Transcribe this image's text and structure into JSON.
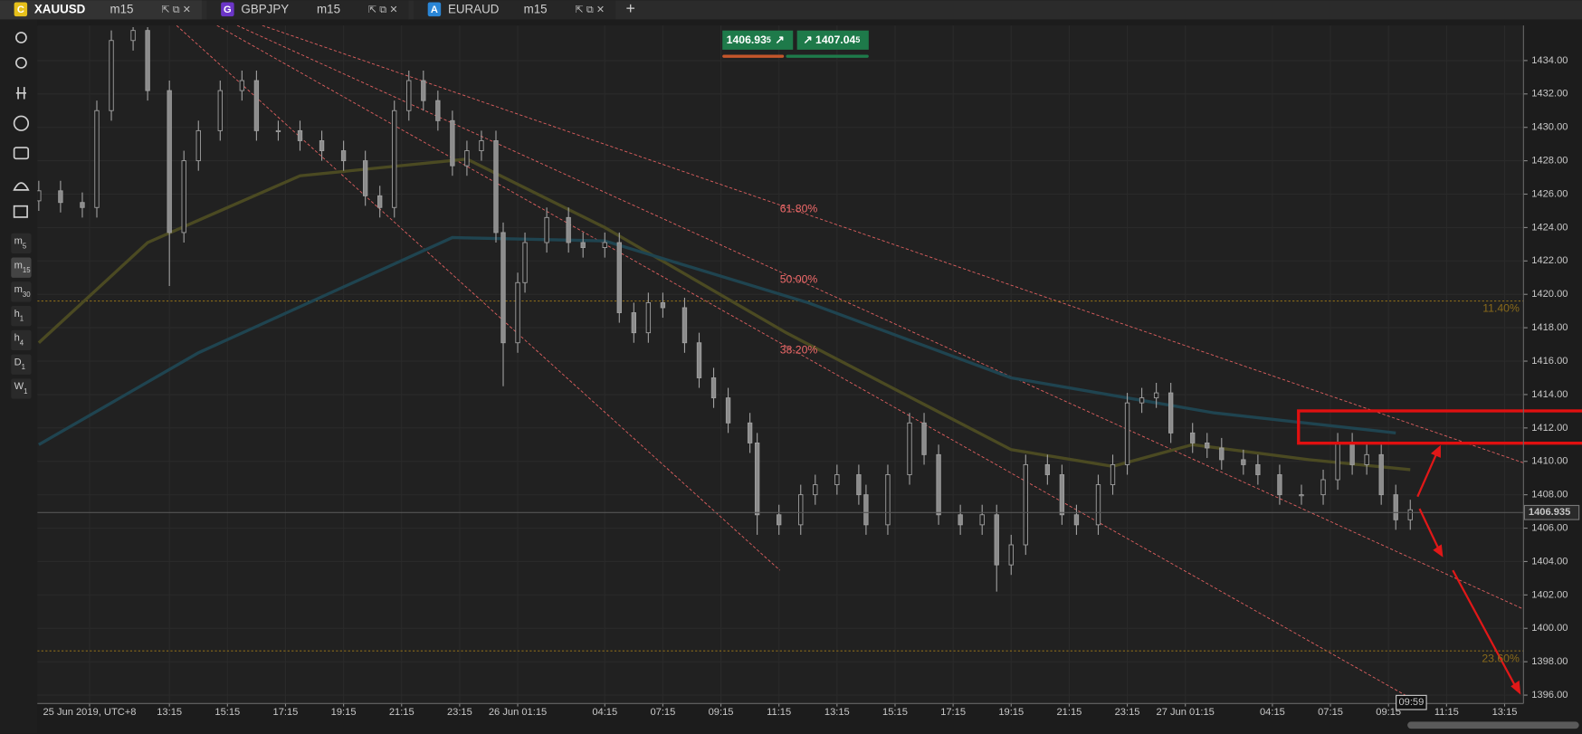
{
  "tabs": [
    {
      "icon": "C",
      "symbol": "XAUUSD",
      "timeframe": "m15"
    },
    {
      "icon": "G",
      "symbol": "GBPJPY",
      "timeframe": "m15"
    },
    {
      "icon": "A",
      "symbol": "EURAUD",
      "timeframe": "m15"
    }
  ],
  "toolbar": {
    "timeframes": [
      {
        "main": "m",
        "sub": "5"
      },
      {
        "main": "m",
        "sub": "15"
      },
      {
        "main": "m",
        "sub": "30"
      },
      {
        "main": "h",
        "sub": "1"
      },
      {
        "main": "h",
        "sub": "4"
      },
      {
        "main": "D",
        "sub": "1"
      },
      {
        "main": "W",
        "sub": "1"
      }
    ]
  },
  "quote": {
    "bid": "1406.93",
    "bid_pip": "5",
    "ask": "1407.04",
    "ask_pip": "5"
  },
  "chart_data": {
    "type": "candlestick",
    "x": [
      -18,
      -15,
      -12,
      -10,
      -8,
      -5,
      -3,
      0,
      2,
      4,
      7,
      10,
      12,
      15,
      18,
      21,
      24,
      27,
      29,
      31,
      33,
      35,
      37,
      39,
      41,
      43,
      45,
      46,
      48,
      49,
      52,
      55,
      57,
      60,
      62,
      64,
      66,
      68,
      71,
      73,
      75,
      77,
      80,
      81,
      84,
      87,
      89,
      92,
      95,
      96,
      99,
      102,
      104,
      106,
      109,
      112,
      114,
      116,
      118,
      121,
      123,
      125,
      128,
      130,
      132,
      134,
      136,
      138,
      141,
      143,
      145,
      148,
      150,
      153,
      156,
      159,
      161,
      163,
      165,
      167,
      169,
      171
    ],
    "open": [
      1425.6,
      1426.2,
      1425.5,
      1425.2,
      1431.0,
      1435.2,
      1435.8,
      1432.2,
      1423.7,
      1428.0,
      1429.8,
      1432.2,
      1432.8,
      1429.8,
      1429.8,
      1429.2,
      1428.6,
      1428.0,
      1425.9,
      1425.2,
      1431.0,
      1432.8,
      1431.6,
      1430.4,
      1427.7,
      1428.6,
      1429.2,
      1423.7,
      1417.1,
      1420.7,
      1423.1,
      1424.6,
      1423.1,
      1422.8,
      1423.1,
      1418.9,
      1417.7,
      1419.5,
      1419.2,
      1417.1,
      1415.0,
      1413.8,
      1412.3,
      1411.1,
      1406.8,
      1406.2,
      1408.0,
      1408.6,
      1409.2,
      1408.0,
      1406.2,
      1409.2,
      1412.3,
      1410.4,
      1406.8,
      1406.2,
      1406.8,
      1403.8,
      1405.0,
      1409.8,
      1409.2,
      1406.8,
      1406.2,
      1408.6,
      1409.8,
      1413.5,
      1413.8,
      1414.1,
      1411.7,
      1411.1,
      1410.8,
      1410.1,
      1409.8,
      1409.2,
      1408.0,
      1408.0,
      1408.9,
      1411.1,
      1409.8,
      1410.4,
      1408.0,
      1406.5
    ],
    "high": [
      1426.8,
      1426.8,
      1426.1,
      1431.6,
      1435.8,
      1436.0,
      1436.0,
      1432.8,
      1428.6,
      1430.4,
      1432.8,
      1433.4,
      1433.4,
      1430.4,
      1430.4,
      1429.8,
      1429.2,
      1428.6,
      1426.5,
      1431.6,
      1433.4,
      1433.4,
      1432.2,
      1431.0,
      1429.2,
      1429.8,
      1429.8,
      1424.3,
      1421.3,
      1423.7,
      1425.2,
      1425.2,
      1423.7,
      1423.7,
      1423.7,
      1419.5,
      1420.1,
      1420.1,
      1419.8,
      1417.7,
      1415.6,
      1414.4,
      1412.9,
      1411.7,
      1407.4,
      1408.6,
      1409.2,
      1409.8,
      1409.8,
      1408.6,
      1409.8,
      1412.9,
      1412.9,
      1411.0,
      1407.4,
      1407.4,
      1407.4,
      1405.6,
      1410.4,
      1410.4,
      1409.8,
      1407.4,
      1409.2,
      1410.4,
      1414.1,
      1414.4,
      1414.7,
      1414.7,
      1412.3,
      1411.7,
      1411.4,
      1410.7,
      1410.4,
      1409.8,
      1408.6,
      1409.5,
      1411.7,
      1411.7,
      1411.0,
      1411.0,
      1408.6,
      1407.7
    ],
    "low": [
      1425.0,
      1424.9,
      1424.6,
      1424.6,
      1430.4,
      1434.6,
      1431.6,
      1420.5,
      1423.1,
      1427.4,
      1429.2,
      1431.6,
      1429.2,
      1429.2,
      1428.6,
      1428.0,
      1427.4,
      1425.3,
      1424.6,
      1424.6,
      1430.4,
      1431.0,
      1429.8,
      1427.1,
      1427.1,
      1428.0,
      1423.1,
      1414.5,
      1416.5,
      1420.1,
      1422.5,
      1422.5,
      1422.2,
      1422.2,
      1418.3,
      1417.1,
      1417.1,
      1418.6,
      1416.5,
      1414.4,
      1413.2,
      1411.7,
      1410.5,
      1405.6,
      1405.6,
      1405.6,
      1407.4,
      1408.0,
      1407.4,
      1405.6,
      1405.6,
      1408.6,
      1409.8,
      1406.2,
      1405.6,
      1405.6,
      1402.2,
      1403.2,
      1404.4,
      1408.6,
      1406.2,
      1405.6,
      1405.6,
      1408.0,
      1409.2,
      1412.9,
      1413.2,
      1411.1,
      1410.5,
      1410.2,
      1409.5,
      1409.2,
      1408.6,
      1407.4,
      1407.4,
      1407.4,
      1408.3,
      1409.2,
      1409.2,
      1407.4,
      1405.9,
      1405.9
    ],
    "close": [
      1426.2,
      1425.5,
      1425.2,
      1431.0,
      1435.2,
      1435.8,
      1432.2,
      1423.7,
      1428.0,
      1429.8,
      1432.2,
      1432.8,
      1429.8,
      1429.8,
      1429.2,
      1428.6,
      1428.0,
      1425.9,
      1425.2,
      1431.0,
      1432.8,
      1431.6,
      1430.4,
      1427.7,
      1428.6,
      1429.2,
      1423.7,
      1417.1,
      1420.7,
      1423.1,
      1424.6,
      1423.1,
      1422.8,
      1423.1,
      1418.9,
      1417.7,
      1419.5,
      1419.2,
      1417.1,
      1415.0,
      1413.8,
      1412.3,
      1411.1,
      1406.8,
      1406.2,
      1408.0,
      1408.6,
      1409.2,
      1408.0,
      1406.2,
      1409.2,
      1412.3,
      1410.4,
      1406.8,
      1406.2,
      1406.8,
      1403.8,
      1405.0,
      1409.8,
      1409.2,
      1406.8,
      1406.2,
      1408.6,
      1409.8,
      1413.5,
      1413.8,
      1414.1,
      1411.7,
      1411.1,
      1410.8,
      1410.1,
      1409.8,
      1409.2,
      1408.0,
      1408.0,
      1408.9,
      1411.1,
      1409.8,
      1410.4,
      1408.0,
      1406.5,
      1407.1
    ],
    "up_color": "#1e1e1e",
    "down_color": "#8c8c8c",
    "wick_color": "#a0a0a0",
    "moving_averages": [
      {
        "color": "#4b4a22",
        "x": [
          -18,
          -3,
          18,
          41,
          60,
          85,
          116,
          130,
          141,
          157,
          171
        ],
        "values": [
          1417.1,
          1423.1,
          1427.1,
          1428.1,
          1424.0,
          1417.7,
          1410.7,
          1409.7,
          1411.0,
          1410.1,
          1409.5
        ]
      },
      {
        "color": "#1f4450",
        "x": [
          -18,
          4,
          39,
          60,
          88,
          116,
          144,
          169
        ],
        "values": [
          1411.0,
          1416.5,
          1423.4,
          1423.2,
          1419.5,
          1415.0,
          1412.9,
          1411.7
        ]
      }
    ],
    "levels": [
      {
        "value": 1419.6,
        "label": "11.40%"
      },
      {
        "value": 1398.65,
        "label": "23.60%"
      }
    ],
    "fib_labels": [
      "61.80%",
      "50.00%",
      "38.20%"
    ],
    "current_price": 1406.935,
    "current_time": "09:59",
    "xlim": [
      -18.2,
      186.6
    ],
    "ylim": [
      1395.5,
      1436.1
    ],
    "xticks": [
      {
        "value": -11,
        "label": "25 Jun 2019, UTC+8"
      },
      {
        "value": 0,
        "label": "13:15"
      },
      {
        "value": 8,
        "label": "15:15"
      },
      {
        "value": 16,
        "label": "17:15"
      },
      {
        "value": 24,
        "label": "19:15"
      },
      {
        "value": 32,
        "label": "21:15"
      },
      {
        "value": 40,
        "label": "23:15"
      },
      {
        "value": 48,
        "label": "26 Jun 01:15"
      },
      {
        "value": 60,
        "label": "04:15"
      },
      {
        "value": 68,
        "label": "07:15"
      },
      {
        "value": 76,
        "label": "09:15"
      },
      {
        "value": 84,
        "label": "11:15"
      },
      {
        "value": 92,
        "label": "13:15"
      },
      {
        "value": 100,
        "label": "15:15"
      },
      {
        "value": 108,
        "label": "17:15"
      },
      {
        "value": 116,
        "label": "19:15"
      },
      {
        "value": 124,
        "label": "21:15"
      },
      {
        "value": 132,
        "label": "23:15"
      },
      {
        "value": 140,
        "label": "27 Jun 01:15"
      },
      {
        "value": 152,
        "label": "04:15"
      },
      {
        "value": 160,
        "label": "07:15"
      },
      {
        "value": 168,
        "label": "09:15"
      },
      {
        "value": 176,
        "label": "11:15"
      },
      {
        "value": 184,
        "label": "13:15"
      }
    ],
    "yticks": [
      {
        "value": 1396,
        "label": "1396.00"
      },
      {
        "value": 1398,
        "label": "1398.00"
      },
      {
        "value": 1400,
        "label": "1400.00"
      },
      {
        "value": 1402,
        "label": "1402.00"
      },
      {
        "value": 1404,
        "label": "1404.00"
      },
      {
        "value": 1406,
        "label": "1406.00"
      },
      {
        "value": 1408,
        "label": "1408.00"
      },
      {
        "value": 1410,
        "label": "1410.00"
      },
      {
        "value": 1412,
        "label": "1412.00"
      },
      {
        "value": 1414,
        "label": "1414.00"
      },
      {
        "value": 1416,
        "label": "1416.00"
      },
      {
        "value": 1418,
        "label": "1418.00"
      },
      {
        "value": 1420,
        "label": "1420.00"
      },
      {
        "value": 1422,
        "label": "1422.00"
      },
      {
        "value": 1424,
        "label": "1424.00"
      },
      {
        "value": 1426,
        "label": "1426.00"
      },
      {
        "value": 1428,
        "label": "1428.00"
      },
      {
        "value": 1430,
        "label": "1430.00"
      },
      {
        "value": 1432,
        "label": "1432.00"
      },
      {
        "value": 1434,
        "label": "1434.00"
      }
    ],
    "grid": true
  }
}
